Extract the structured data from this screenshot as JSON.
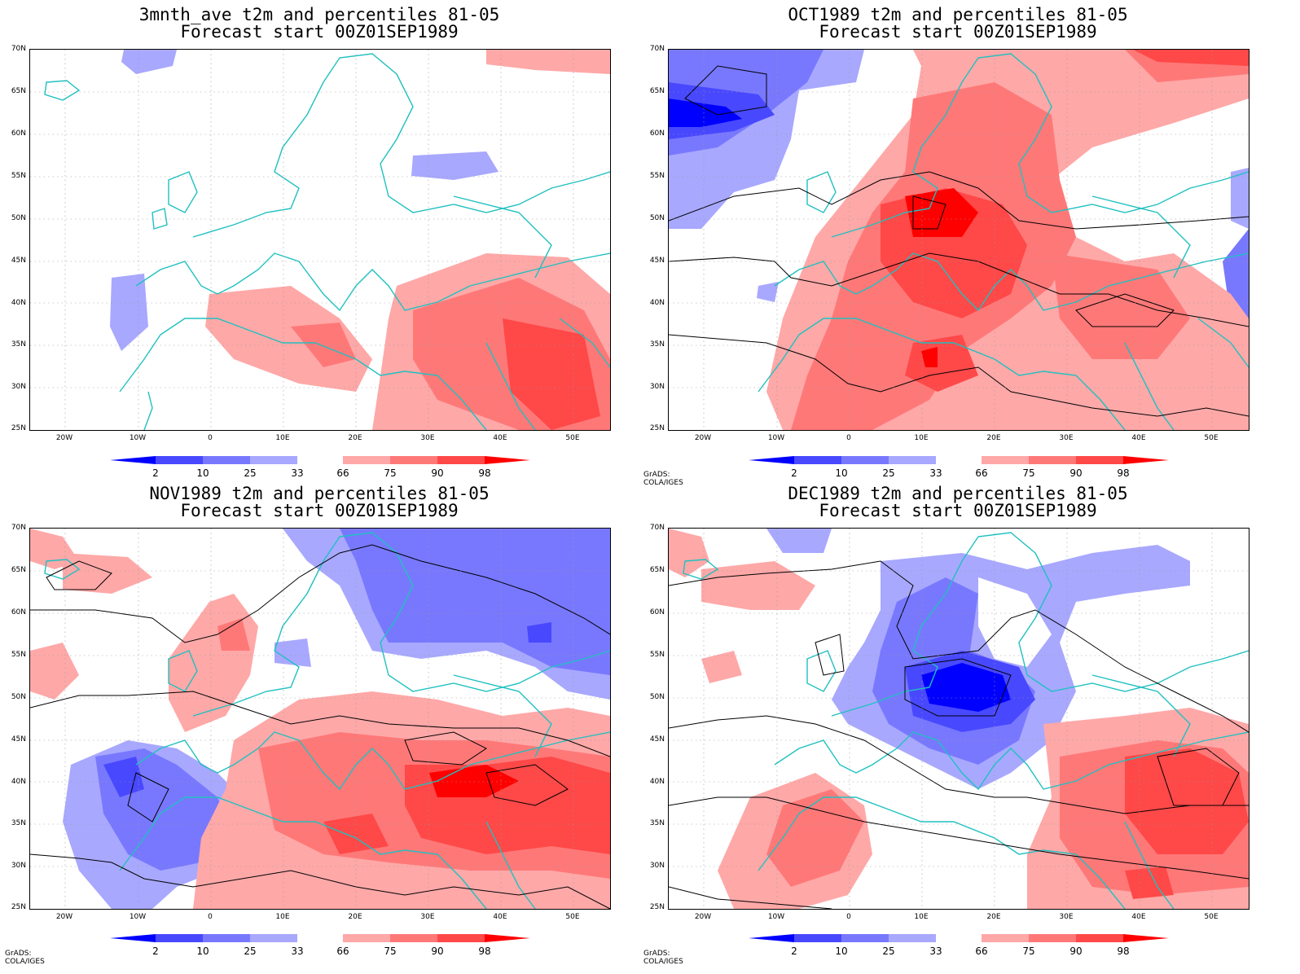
{
  "panels": [
    {
      "line1": "3mnth_ave t2m and percentiles 81-05",
      "line2": "Forecast start 00Z01SEP1989",
      "credit": ""
    },
    {
      "line1": "OCT1989 t2m and percentiles 81-05",
      "line2": "Forecast start 00Z01SEP1989",
      "credit": "GrADS: COLA/IGES"
    },
    {
      "line1": "NOV1989 t2m and percentiles 81-05",
      "line2": "Forecast start 00Z01SEP1989",
      "credit": "GrADS: COLA/IGES"
    },
    {
      "line1": "DEC1989 t2m and percentiles 81-05",
      "line2": "Forecast start 00Z01SEP1989",
      "credit": "GrADS: COLA/IGES"
    }
  ],
  "lat_labels": [
    "70N",
    "65N",
    "60N",
    "55N",
    "50N",
    "45N",
    "40N",
    "35N",
    "30N",
    "25N"
  ],
  "lon_labels": [
    "20W",
    "10W",
    "0",
    "10E",
    "20E",
    "30E",
    "40E",
    "50E"
  ],
  "colorbar": {
    "labels": [
      "2",
      "10",
      "25",
      "33",
      "66",
      "75",
      "90",
      "98"
    ],
    "colors": [
      "#0000ff",
      "#4848ff",
      "#7878ff",
      "#a8a8ff",
      "#ffffff",
      "#ffa8a8",
      "#ff7878",
      "#ff4848",
      "#ff0000"
    ]
  },
  "colors": {
    "coast": "#20c0c0",
    "contour": "#000000",
    "grid": "#999999"
  }
}
